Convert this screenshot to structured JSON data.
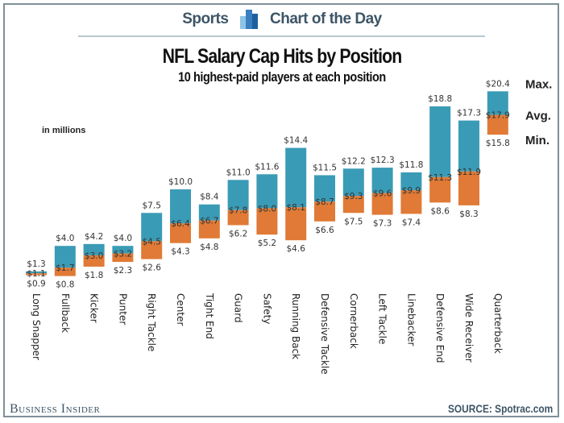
{
  "header": {
    "left": "Sports",
    "right": "Chart of the Day"
  },
  "footer": {
    "brand": "Business Insider",
    "source": "SOURCE: Spotrac.com"
  },
  "chart_data": {
    "type": "bar",
    "title": "NFL Salary Cap Hits by Position",
    "subtitle": "10 highest-paid players at each position",
    "units": "in millions",
    "value_prefix": "$",
    "categories": [
      "Long Snapper",
      "Fullback",
      "Kicker",
      "Punter",
      "Right Tackle",
      "Center",
      "Tight End",
      "Guard",
      "Safety",
      "Running Back",
      "Defensive Tackle",
      "Cornerback",
      "Left Tackle",
      "Linebacker",
      "Defensive End",
      "Wide Receiver",
      "Quarterback"
    ],
    "series": [
      {
        "name": "Max.",
        "values": [
          1.3,
          4.0,
          4.2,
          4.0,
          7.5,
          10.0,
          8.4,
          11.0,
          11.6,
          14.4,
          11.5,
          12.2,
          12.3,
          11.8,
          18.8,
          17.3,
          20.4
        ]
      },
      {
        "name": "Avg.",
        "values": [
          1.1,
          1.7,
          3.0,
          3.2,
          4.5,
          6.4,
          6.7,
          7.8,
          8.0,
          8.1,
          8.7,
          9.3,
          9.6,
          9.9,
          11.3,
          11.9,
          17.9
        ]
      },
      {
        "name": "Min.",
        "values": [
          0.9,
          0.8,
          1.8,
          2.3,
          2.6,
          4.3,
          4.8,
          6.2,
          5.2,
          4.6,
          6.6,
          7.5,
          7.3,
          7.4,
          8.6,
          8.3,
          15.8
        ]
      }
    ],
    "legend": [
      "Max.",
      "Avg.",
      "Min."
    ],
    "legend_placement": "right",
    "colors": {
      "upper": "#3a9bb6",
      "lower": "#e07a36"
    },
    "grid": false
  }
}
